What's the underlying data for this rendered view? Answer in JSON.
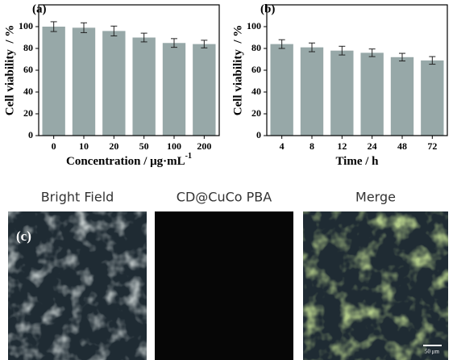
{
  "chart_data": [
    {
      "type": "bar",
      "title": "(a)",
      "categories": [
        "0",
        "10",
        "20",
        "50",
        "100",
        "200"
      ],
      "values": [
        100,
        99,
        96,
        90,
        85,
        84
      ],
      "errors": [
        4.5,
        4.5,
        4.5,
        4,
        4,
        3.5
      ],
      "color": "#97a8a8",
      "ylim": [
        0,
        120
      ],
      "yticks": [
        0,
        20,
        40,
        60,
        80,
        100
      ],
      "ylabel": "Cell viability  / %",
      "xlabel": "Concentration / μg·mL",
      "xlabel_superscript": "-1"
    },
    {
      "type": "bar",
      "title": "(b)",
      "categories": [
        "4",
        "8",
        "12",
        "24",
        "48",
        "72"
      ],
      "values": [
        84,
        81,
        78,
        76,
        72,
        69
      ],
      "errors": [
        4,
        4,
        4,
        3.5,
        3.5,
        3.5
      ],
      "color": "#97a8a8",
      "ylim": [
        0,
        120
      ],
      "yticks": [
        0,
        20,
        40,
        60,
        80,
        100
      ],
      "ylabel": "Cell viability  / %",
      "xlabel": "Time / h"
    }
  ],
  "images": {
    "label": "(c)",
    "titles": [
      "Bright Field",
      "CD@CuCo PBA",
      "Merge"
    ],
    "scale_bar": "50 μm"
  }
}
